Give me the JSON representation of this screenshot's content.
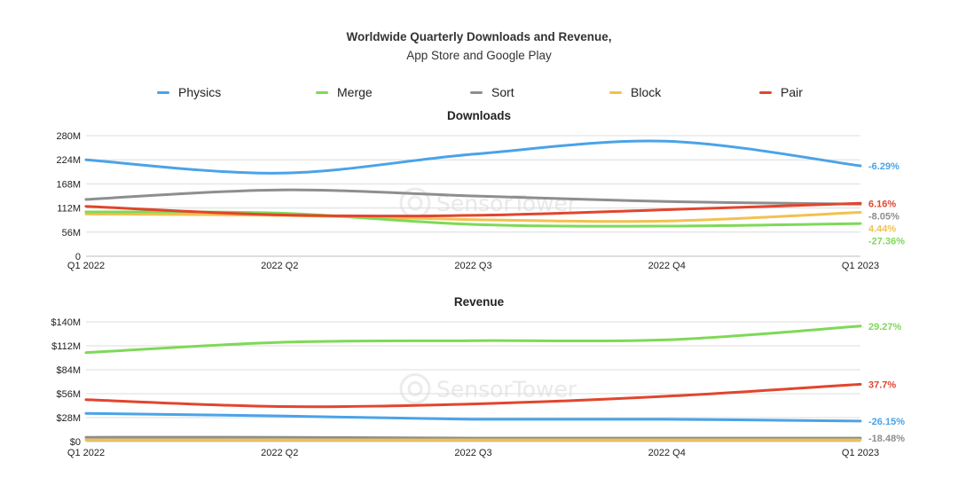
{
  "title": "Worldwide Quarterly Downloads and Revenue,",
  "subtitle": "App Store and Google Play",
  "watermark": "SensorTower",
  "legend": [
    {
      "name": "Physics",
      "color": "#4aa3e8"
    },
    {
      "name": "Merge",
      "color": "#7ed957"
    },
    {
      "name": "Sort",
      "color": "#8e8e8e"
    },
    {
      "name": "Block",
      "color": "#f2c14e"
    },
    {
      "name": "Pair",
      "color": "#e2452d"
    }
  ],
  "chart_data": [
    {
      "type": "line",
      "title": "Downloads",
      "categories": [
        "Q1 2022",
        "2022 Q2",
        "2022 Q3",
        "2022 Q4",
        "Q1 2023"
      ],
      "yticks": [
        "0",
        "56M",
        "112M",
        "168M",
        "224M",
        "280M"
      ],
      "ylim": [
        0,
        280
      ],
      "ylabel_unit": "M",
      "grid": true,
      "series": [
        {
          "name": "Physics",
          "color": "#4aa3e8",
          "values": [
            224,
            193,
            237,
            267,
            210
          ],
          "end_label": "-6.29%"
        },
        {
          "name": "Merge",
          "color": "#7ed957",
          "values": [
            103,
            100,
            74,
            70,
            76
          ],
          "end_label": "-27.36%"
        },
        {
          "name": "Sort",
          "color": "#8e8e8e",
          "values": [
            132,
            154,
            140,
            127,
            121
          ],
          "end_label": "-8.05%"
        },
        {
          "name": "Block",
          "color": "#f2c14e",
          "values": [
            98,
            95,
            85,
            82,
            102
          ],
          "end_label": "4.44%"
        },
        {
          "name": "Pair",
          "color": "#e2452d",
          "values": [
            116,
            96,
            95,
            108,
            123
          ],
          "end_label": "6.16%"
        }
      ]
    },
    {
      "type": "line",
      "title": "Revenue",
      "categories": [
        "Q1 2022",
        "2022 Q2",
        "2022 Q3",
        "2022 Q4",
        "Q1 2023"
      ],
      "yticks": [
        "$0",
        "$28M",
        "$56M",
        "$84M",
        "$112M",
        "$140M"
      ],
      "ylim": [
        0,
        140
      ],
      "ylabel_unit": "$M",
      "grid": true,
      "series": [
        {
          "name": "Physics",
          "color": "#4aa3e8",
          "values": [
            33,
            30,
            26,
            26,
            24
          ],
          "end_label": "-26.15%"
        },
        {
          "name": "Merge",
          "color": "#7ed957",
          "values": [
            104,
            116,
            118,
            119,
            135
          ],
          "end_label": "29.27%"
        },
        {
          "name": "Sort",
          "color": "#8e8e8e",
          "values": [
            5,
            5,
            4,
            4,
            4
          ],
          "end_label": "-18.48%"
        },
        {
          "name": "Block",
          "color": "#f2c14e",
          "values": [
            2,
            2,
            2,
            2,
            2
          ],
          "end_label": ""
        },
        {
          "name": "Pair",
          "color": "#e2452d",
          "values": [
            49,
            41,
            44,
            53,
            67
          ],
          "end_label": "37.7%"
        }
      ]
    }
  ]
}
